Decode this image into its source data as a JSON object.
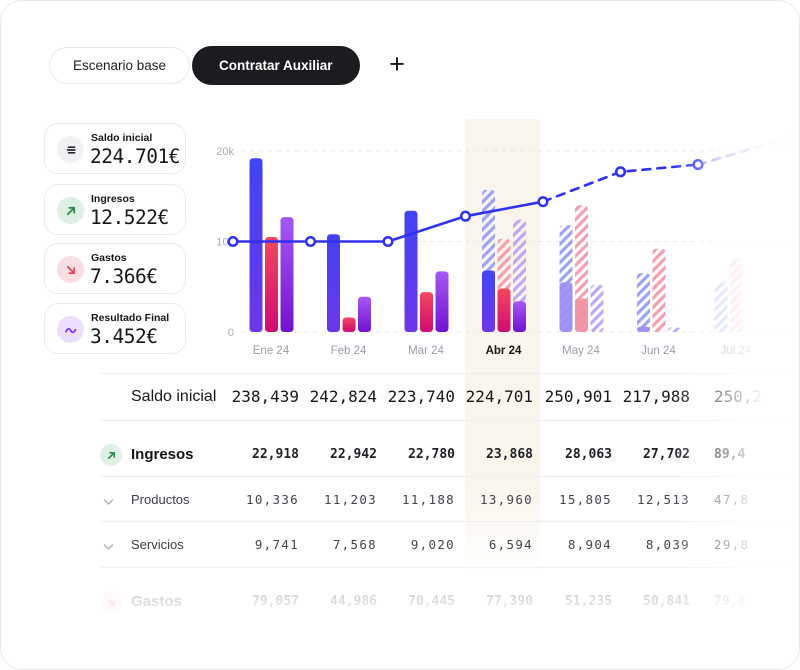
{
  "tabs": {
    "items": [
      {
        "label": "Escenario base",
        "active": false
      },
      {
        "label": "Contratar Auxiliar",
        "active": true
      }
    ],
    "add_label": "+"
  },
  "summary_cards": [
    {
      "id": "saldo-inicial",
      "title": "Saldo inicial",
      "value": "224.701€",
      "icon": "lines-icon",
      "icon_bg": "#f1f1f4",
      "icon_color": "#26292e"
    },
    {
      "id": "ingresos",
      "title": "Ingresos",
      "value": "12.522€",
      "icon": "arrow-up-right-icon",
      "icon_bg": "#def0e4",
      "icon_color": "#2f8a50"
    },
    {
      "id": "gastos",
      "title": "Gastos",
      "value": "7.366€",
      "icon": "arrow-down-right-icon",
      "icon_bg": "#f9dee3",
      "icon_color": "#dd4b62"
    },
    {
      "id": "resultado-final",
      "title": "Resultado Final",
      "value": "3.452€",
      "icon": "wave-icon",
      "icon_bg": "#ecdffc",
      "icon_color": "#8b38f2"
    }
  ],
  "chart_data": {
    "type": "bar+line",
    "categories": [
      "Ene 24",
      "Feb 24",
      "Mar 24",
      "Abr 24",
      "May 24",
      "Jun 24",
      "Jul 24"
    ],
    "highlighted_category": "Abr 24",
    "y_ticks": [
      {
        "label": "0",
        "value": 0
      },
      {
        "label": "10k",
        "value": 10000
      },
      {
        "label": "20k",
        "value": 20000
      }
    ],
    "ylim": [
      0,
      22000
    ],
    "grid": true,
    "bar_series": [
      {
        "name": "ingresos-azul",
        "color_top": "#4144f2",
        "color_bottom": "#6d36ea",
        "hatch_color": "#9aa3f6",
        "overlay_color": "#9d8ff2",
        "solid": [
          19200,
          10800,
          13400,
          6800,
          null,
          null,
          null
        ],
        "hatched": [
          null,
          null,
          null,
          15700,
          11800,
          6500,
          5500
        ],
        "overlay": [
          null,
          null,
          null,
          null,
          5500,
          600,
          null
        ]
      },
      {
        "name": "gastos-rojo",
        "color_top": "#f4485f",
        "color_bottom": "#cf0b73",
        "hatch_color": "#f5a0af",
        "overlay_color": "#f092a3",
        "solid": [
          10500,
          1600,
          4400,
          4800,
          null,
          null,
          null
        ],
        "hatched": [
          null,
          null,
          null,
          10300,
          14000,
          9200,
          8200
        ],
        "overlay": [
          null,
          null,
          null,
          null,
          3700,
          null,
          null
        ]
      },
      {
        "name": "resultado-morado",
        "color_top": "#a558f5",
        "color_bottom": "#7213cf",
        "hatch_color": "#c0a6f8",
        "overlay_color": "#9b87ef",
        "solid": [
          12700,
          3900,
          6700,
          3400,
          null,
          null,
          null
        ],
        "hatched": [
          null,
          null,
          null,
          12400,
          5200,
          500,
          null
        ],
        "overlay": [
          null,
          null,
          null,
          null,
          null,
          null,
          null
        ]
      }
    ],
    "line_series": {
      "name": "saldo-linea",
      "color": "#3032ee",
      "values": [
        10000,
        10000,
        10000,
        12800,
        14400,
        17700,
        18500
      ],
      "solid_until_index": 4,
      "extension_value": 21800
    }
  },
  "table": {
    "rows": [
      {
        "id": "saldo-inicial",
        "label": "Saldo inicial",
        "icon": "none",
        "values": [
          "238,439",
          "242,824",
          "223,740",
          "224,701",
          "250,901",
          "217,988",
          "250,2"
        ],
        "forecast_cols": [
          4,
          5,
          6
        ]
      },
      {
        "id": "ingresos",
        "label": "Ingresos",
        "icon": "arrow-up-right",
        "values": [
          "22,918",
          "22,942",
          "22,780",
          "23,868",
          "28,063",
          "27,702",
          "89,4"
        ],
        "forecast_cols": []
      },
      {
        "id": "productos",
        "label": "Productos",
        "icon": "chevron-down",
        "values": [
          "10,336",
          "11,203",
          "11,188",
          "13,960",
          "15,805",
          "12,513",
          "47,8"
        ],
        "forecast_cols": []
      },
      {
        "id": "servicios",
        "label": "Servicios",
        "icon": "chevron-down",
        "values": [
          "9,741",
          "7,568",
          "9,020",
          "6,594",
          "8,904",
          "8,039",
          "29,8"
        ],
        "forecast_cols": []
      },
      {
        "id": "gastos",
        "label": "Gastos",
        "icon": "arrow-down-right",
        "values": [
          "79,057",
          "44,986",
          "70,445",
          "77,390",
          "51,235",
          "50,841",
          "79,0"
        ],
        "forecast_cols": []
      }
    ]
  }
}
